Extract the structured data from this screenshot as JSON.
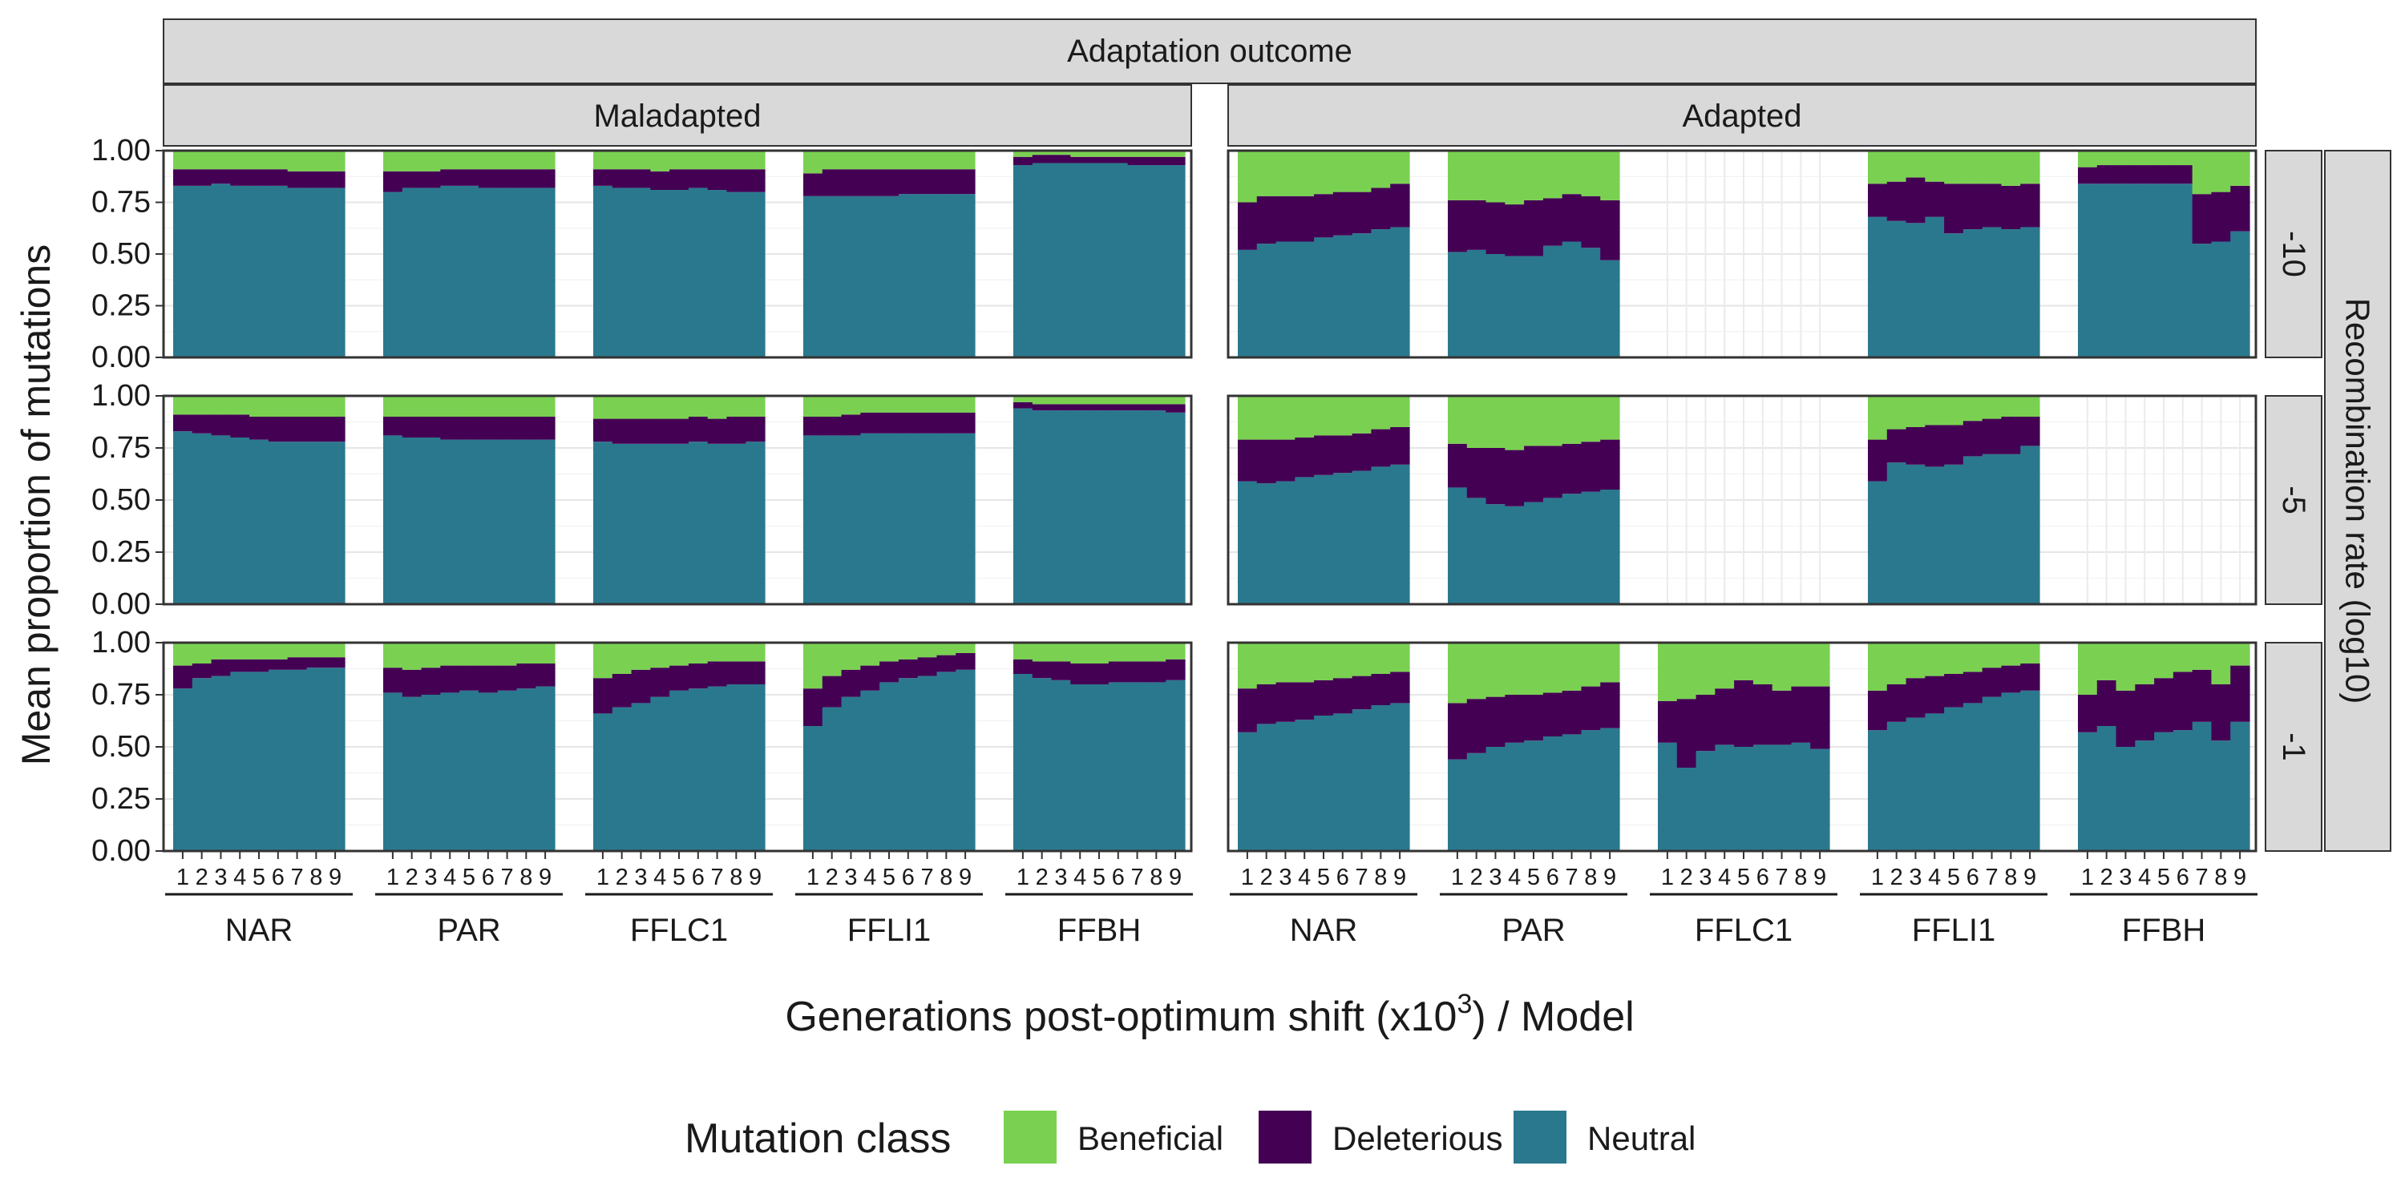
{
  "chart_data": {
    "type": "bar",
    "stacked": true,
    "facet_top_title": "Adaptation outcome",
    "facet_columns": [
      "Maladapted",
      "Adapted"
    ],
    "facet_rows_title": "Recombination rate (log10)",
    "facet_rows": [
      "-10",
      "-5",
      "-1"
    ],
    "models": [
      "NAR",
      "PAR",
      "FFLC1",
      "FFLI1",
      "FFBH"
    ],
    "generations": [
      "1",
      "2",
      "3",
      "4",
      "5",
      "6",
      "7",
      "8",
      "9"
    ],
    "xlabel_main": "Generations post-optimum shift (x10",
    "xlabel_sup": "3",
    "xlabel_end": ") / Model",
    "ylabel": "Mean proportion of mutations",
    "ylim": [
      0,
      1
    ],
    "y_ticks": [
      "0.00",
      "0.25",
      "0.50",
      "0.75",
      "1.00"
    ],
    "legend": {
      "title": "Mutation class",
      "position": "bottom",
      "items": [
        {
          "name": "Beneficial",
          "color": "#7AD151"
        },
        {
          "name": "Deleterious",
          "color": "#440154"
        },
        {
          "name": "Neutral",
          "color": "#2A788E"
        }
      ]
    },
    "grid": true,
    "panels": [
      {
        "row": "-10",
        "col": "Maladapted",
        "groups": [
          {
            "model": "NAR",
            "neutral": [
              0.83,
              0.83,
              0.84,
              0.83,
              0.83,
              0.83,
              0.82,
              0.82,
              0.82
            ],
            "deleterious": [
              0.08,
              0.08,
              0.07,
              0.08,
              0.08,
              0.08,
              0.08,
              0.08,
              0.08
            ]
          },
          {
            "model": "PAR",
            "neutral": [
              0.8,
              0.82,
              0.82,
              0.83,
              0.83,
              0.82,
              0.82,
              0.82,
              0.82
            ],
            "deleterious": [
              0.1,
              0.08,
              0.08,
              0.08,
              0.08,
              0.09,
              0.09,
              0.09,
              0.09
            ]
          },
          {
            "model": "FFLC1",
            "neutral": [
              0.83,
              0.82,
              0.82,
              0.81,
              0.81,
              0.82,
              0.81,
              0.8,
              0.8
            ],
            "deleterious": [
              0.08,
              0.09,
              0.09,
              0.09,
              0.1,
              0.09,
              0.1,
              0.11,
              0.11
            ]
          },
          {
            "model": "FFLI1",
            "neutral": [
              0.78,
              0.78,
              0.78,
              0.78,
              0.78,
              0.79,
              0.79,
              0.79,
              0.79
            ],
            "deleterious": [
              0.11,
              0.13,
              0.13,
              0.13,
              0.13,
              0.12,
              0.12,
              0.12,
              0.12
            ]
          },
          {
            "model": "FFBH",
            "neutral": [
              0.93,
              0.94,
              0.94,
              0.94,
              0.94,
              0.94,
              0.93,
              0.93,
              0.93
            ],
            "deleterious": [
              0.04,
              0.04,
              0.04,
              0.03,
              0.03,
              0.03,
              0.04,
              0.04,
              0.04
            ]
          }
        ]
      },
      {
        "row": "-10",
        "col": "Adapted",
        "groups": [
          {
            "model": "NAR",
            "neutral": [
              0.52,
              0.55,
              0.56,
              0.56,
              0.58,
              0.59,
              0.6,
              0.62,
              0.63
            ],
            "deleterious": [
              0.23,
              0.23,
              0.22,
              0.22,
              0.21,
              0.21,
              0.2,
              0.2,
              0.21
            ]
          },
          {
            "model": "PAR",
            "neutral": [
              0.51,
              0.52,
              0.5,
              0.49,
              0.49,
              0.54,
              0.56,
              0.53,
              0.47
            ],
            "deleterious": [
              0.25,
              0.24,
              0.25,
              0.25,
              0.27,
              0.23,
              0.23,
              0.25,
              0.29
            ]
          },
          {
            "model": "FFLC1",
            "neutral": [
              0,
              0,
              0,
              0,
              0,
              0,
              0,
              0,
              0
            ],
            "deleterious": [
              0,
              0,
              0,
              0,
              0,
              0,
              0,
              0,
              0
            ],
            "beneficial": [
              0,
              0,
              0,
              0,
              0,
              0,
              0,
              0,
              0
            ]
          },
          {
            "model": "FFLI1",
            "neutral": [
              0.68,
              0.66,
              0.65,
              0.68,
              0.6,
              0.62,
              0.63,
              0.62,
              0.63
            ],
            "deleterious": [
              0.16,
              0.19,
              0.22,
              0.17,
              0.24,
              0.22,
              0.21,
              0.21,
              0.21
            ]
          },
          {
            "model": "FFBH",
            "neutral": [
              0.84,
              0.84,
              0.84,
              0.84,
              0.84,
              0.84,
              0.55,
              0.56,
              0.61
            ],
            "deleterious": [
              0.08,
              0.09,
              0.09,
              0.09,
              0.09,
              0.09,
              0.24,
              0.24,
              0.22
            ]
          }
        ]
      },
      {
        "row": "-5",
        "col": "Maladapted",
        "groups": [
          {
            "model": "NAR",
            "neutral": [
              0.83,
              0.82,
              0.81,
              0.8,
              0.79,
              0.78,
              0.78,
              0.78,
              0.78
            ],
            "deleterious": [
              0.08,
              0.09,
              0.1,
              0.11,
              0.11,
              0.12,
              0.12,
              0.12,
              0.12
            ]
          },
          {
            "model": "PAR",
            "neutral": [
              0.81,
              0.8,
              0.8,
              0.79,
              0.79,
              0.79,
              0.79,
              0.79,
              0.79
            ],
            "deleterious": [
              0.09,
              0.1,
              0.1,
              0.11,
              0.11,
              0.11,
              0.11,
              0.11,
              0.11
            ]
          },
          {
            "model": "FFLC1",
            "neutral": [
              0.78,
              0.77,
              0.77,
              0.77,
              0.77,
              0.78,
              0.77,
              0.77,
              0.78
            ],
            "deleterious": [
              0.11,
              0.12,
              0.12,
              0.12,
              0.12,
              0.12,
              0.12,
              0.13,
              0.12
            ]
          },
          {
            "model": "FFLI1",
            "neutral": [
              0.81,
              0.81,
              0.81,
              0.82,
              0.82,
              0.82,
              0.82,
              0.82,
              0.82
            ],
            "deleterious": [
              0.09,
              0.09,
              0.1,
              0.1,
              0.1,
              0.1,
              0.1,
              0.1,
              0.1
            ]
          },
          {
            "model": "FFBH",
            "neutral": [
              0.94,
              0.93,
              0.93,
              0.93,
              0.93,
              0.93,
              0.93,
              0.93,
              0.92
            ],
            "deleterious": [
              0.03,
              0.03,
              0.03,
              0.03,
              0.03,
              0.03,
              0.03,
              0.03,
              0.04
            ]
          }
        ]
      },
      {
        "row": "-5",
        "col": "Adapted",
        "groups": [
          {
            "model": "NAR",
            "neutral": [
              0.59,
              0.58,
              0.59,
              0.61,
              0.62,
              0.63,
              0.64,
              0.66,
              0.67
            ],
            "deleterious": [
              0.2,
              0.21,
              0.2,
              0.19,
              0.19,
              0.18,
              0.18,
              0.18,
              0.18
            ]
          },
          {
            "model": "PAR",
            "neutral": [
              0.56,
              0.51,
              0.48,
              0.47,
              0.49,
              0.51,
              0.53,
              0.54,
              0.55
            ],
            "deleterious": [
              0.21,
              0.24,
              0.27,
              0.27,
              0.27,
              0.25,
              0.24,
              0.24,
              0.24
            ]
          },
          {
            "model": "FFLC1",
            "neutral": [
              0,
              0,
              0,
              0,
              0,
              0,
              0,
              0,
              0
            ],
            "deleterious": [
              0,
              0,
              0,
              0,
              0,
              0,
              0,
              0,
              0
            ],
            "beneficial": [
              0,
              0,
              0,
              0,
              0,
              0,
              0,
              0,
              0
            ]
          },
          {
            "model": "FFLI1",
            "neutral": [
              0.59,
              0.68,
              0.67,
              0.66,
              0.67,
              0.71,
              0.72,
              0.72,
              0.76
            ],
            "deleterious": [
              0.2,
              0.16,
              0.18,
              0.2,
              0.19,
              0.17,
              0.17,
              0.18,
              0.14
            ]
          },
          {
            "model": "FFBH",
            "neutral": [
              0,
              0,
              0,
              0,
              0,
              0,
              0,
              0,
              0
            ],
            "deleterious": [
              0,
              0,
              0,
              0,
              0,
              0,
              0,
              0,
              0
            ],
            "beneficial": [
              0,
              0,
              0,
              0,
              0,
              0,
              0,
              0,
              0
            ]
          }
        ]
      },
      {
        "row": "-1",
        "col": "Maladapted",
        "groups": [
          {
            "model": "NAR",
            "neutral": [
              0.78,
              0.83,
              0.84,
              0.86,
              0.86,
              0.87,
              0.87,
              0.88,
              0.88
            ],
            "deleterious": [
              0.11,
              0.07,
              0.08,
              0.06,
              0.06,
              0.05,
              0.06,
              0.05,
              0.05
            ]
          },
          {
            "model": "PAR",
            "neutral": [
              0.76,
              0.74,
              0.75,
              0.76,
              0.77,
              0.76,
              0.77,
              0.78,
              0.79
            ],
            "deleterious": [
              0.12,
              0.13,
              0.13,
              0.13,
              0.12,
              0.13,
              0.12,
              0.12,
              0.11
            ]
          },
          {
            "model": "FFLC1",
            "neutral": [
              0.66,
              0.69,
              0.71,
              0.74,
              0.77,
              0.78,
              0.79,
              0.8,
              0.8
            ],
            "deleterious": [
              0.17,
              0.16,
              0.16,
              0.14,
              0.12,
              0.12,
              0.12,
              0.11,
              0.11
            ]
          },
          {
            "model": "FFLI1",
            "neutral": [
              0.6,
              0.69,
              0.74,
              0.77,
              0.81,
              0.83,
              0.84,
              0.86,
              0.87
            ],
            "deleterious": [
              0.18,
              0.15,
              0.13,
              0.12,
              0.1,
              0.09,
              0.09,
              0.08,
              0.08
            ]
          },
          {
            "model": "FFBH",
            "neutral": [
              0.85,
              0.83,
              0.82,
              0.8,
              0.8,
              0.81,
              0.81,
              0.81,
              0.82
            ],
            "deleterious": [
              0.07,
              0.08,
              0.09,
              0.1,
              0.1,
              0.1,
              0.1,
              0.1,
              0.1
            ]
          }
        ]
      },
      {
        "row": "-1",
        "col": "Adapted",
        "groups": [
          {
            "model": "NAR",
            "neutral": [
              0.57,
              0.61,
              0.62,
              0.63,
              0.65,
              0.66,
              0.68,
              0.7,
              0.71
            ],
            "deleterious": [
              0.21,
              0.19,
              0.19,
              0.18,
              0.17,
              0.17,
              0.16,
              0.15,
              0.15
            ]
          },
          {
            "model": "PAR",
            "neutral": [
              0.44,
              0.47,
              0.5,
              0.52,
              0.53,
              0.55,
              0.56,
              0.58,
              0.59
            ],
            "deleterious": [
              0.27,
              0.26,
              0.24,
              0.23,
              0.22,
              0.21,
              0.21,
              0.21,
              0.22
            ]
          },
          {
            "model": "FFLC1",
            "neutral": [
              0.52,
              0.4,
              0.48,
              0.51,
              0.5,
              0.51,
              0.51,
              0.52,
              0.49
            ],
            "deleterious": [
              0.2,
              0.33,
              0.27,
              0.27,
              0.32,
              0.29,
              0.26,
              0.27,
              0.3
            ]
          },
          {
            "model": "FFLI1",
            "neutral": [
              0.58,
              0.62,
              0.64,
              0.66,
              0.69,
              0.71,
              0.74,
              0.76,
              0.77
            ],
            "deleterious": [
              0.19,
              0.18,
              0.19,
              0.18,
              0.16,
              0.15,
              0.14,
              0.13,
              0.13
            ]
          },
          {
            "model": "FFBH",
            "neutral": [
              0.57,
              0.6,
              0.5,
              0.53,
              0.57,
              0.58,
              0.62,
              0.53,
              0.62
            ],
            "deleterious": [
              0.18,
              0.22,
              0.27,
              0.27,
              0.26,
              0.28,
              0.25,
              0.27,
              0.27
            ]
          }
        ]
      }
    ]
  }
}
